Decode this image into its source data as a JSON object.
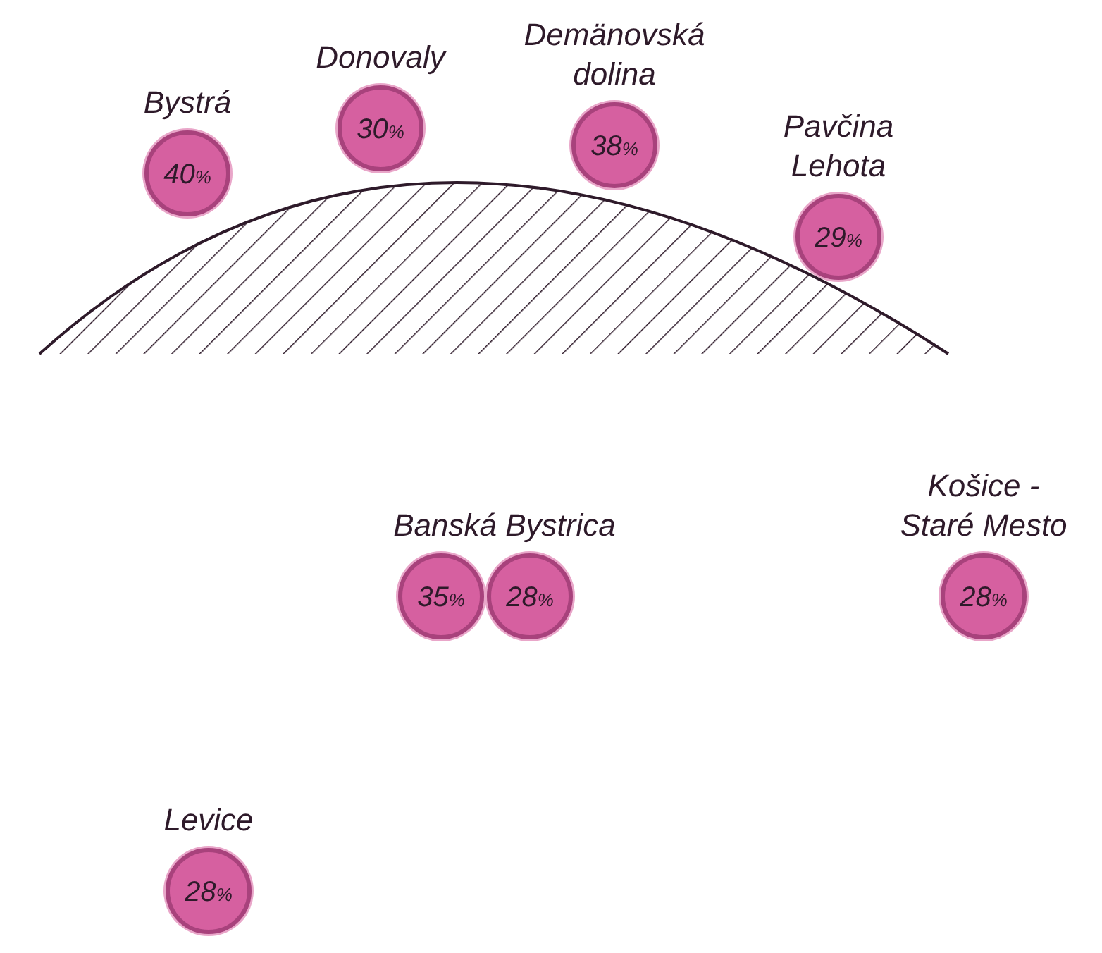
{
  "chart_data": {
    "type": "other",
    "categories": [
      "Bystrá",
      "Donovaly",
      "Demänovská dolina",
      "Pavčina Lehota",
      "Banská Bystrica",
      "Košice - Staré Mesto",
      "Levice"
    ],
    "series": [
      {
        "color": "#d660a0",
        "values": [
          40,
          30,
          38,
          29,
          35,
          28,
          28
        ],
        "value_labels": [
          "40%",
          "30%",
          "38%",
          "29%",
          "35%",
          "28%",
          "28%"
        ]
      },
      {
        "color": "#d660a0",
        "values": [
          null,
          null,
          null,
          null,
          28,
          null,
          null
        ],
        "value_labels": [
          null,
          null,
          null,
          null,
          "28%",
          null,
          null
        ]
      }
    ]
  }
}
